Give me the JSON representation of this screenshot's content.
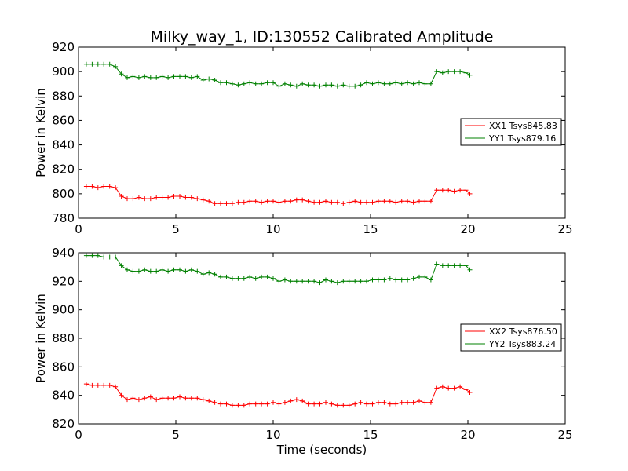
{
  "chart_data": {
    "type": "line",
    "title": "Milky_way_1, ID:130552 Calibrated Amplitude",
    "xlabel": "Time (seconds)",
    "colors": {
      "XX": "#ff0000",
      "YY": "#008000"
    },
    "x": [
      0.4,
      0.7,
      1.0,
      1.3,
      1.6,
      1.9,
      2.2,
      2.5,
      2.8,
      3.1,
      3.4,
      3.7,
      4.0,
      4.3,
      4.6,
      4.9,
      5.2,
      5.5,
      5.8,
      6.1,
      6.4,
      6.7,
      7.0,
      7.3,
      7.6,
      7.9,
      8.2,
      8.5,
      8.8,
      9.1,
      9.4,
      9.7,
      10.0,
      10.3,
      10.6,
      10.9,
      11.2,
      11.5,
      11.8,
      12.1,
      12.4,
      12.7,
      13.0,
      13.3,
      13.6,
      13.9,
      14.2,
      14.5,
      14.8,
      15.1,
      15.4,
      15.7,
      16.0,
      16.3,
      16.6,
      16.9,
      17.2,
      17.5,
      17.8,
      18.1,
      18.4,
      18.7,
      19.0,
      19.3,
      19.6,
      19.9,
      20.1
    ],
    "subplots": [
      {
        "ylabel": "Power in Kelvin",
        "xlim": [
          0,
          25
        ],
        "ylim": [
          780,
          920
        ],
        "xticks": [
          0,
          5,
          10,
          15,
          20,
          25
        ],
        "yticks": [
          780,
          800,
          820,
          840,
          860,
          880,
          900,
          920
        ],
        "legend_position": "center-right",
        "series": [
          {
            "name": "XX1 Tsys845.83",
            "color": "#ff0000",
            "values": [
              806,
              806,
              805,
              806,
              806,
              805,
              798,
              796,
              796,
              797,
              796,
              796,
              797,
              797,
              797,
              798,
              798,
              797,
              797,
              796,
              795,
              794,
              792,
              792,
              792,
              792,
              793,
              793,
              794,
              794,
              793,
              794,
              794,
              793,
              794,
              794,
              795,
              795,
              794,
              793,
              793,
              794,
              793,
              793,
              792,
              793,
              794,
              793,
              793,
              793,
              794,
              794,
              794,
              793,
              794,
              794,
              793,
              794,
              794,
              794,
              803,
              803,
              803,
              802,
              803,
              803,
              800
            ]
          },
          {
            "name": "YY1 Tsys879.16",
            "color": "#008000",
            "values": [
              906,
              906,
              906,
              906,
              906,
              904,
              898,
              895,
              896,
              895,
              896,
              895,
              895,
              896,
              895,
              896,
              896,
              896,
              895,
              896,
              893,
              894,
              893,
              891,
              891,
              890,
              889,
              890,
              891,
              890,
              890,
              891,
              891,
              888,
              890,
              889,
              888,
              890,
              889,
              889,
              888,
              889,
              889,
              888,
              889,
              888,
              888,
              889,
              891,
              890,
              891,
              890,
              890,
              891,
              890,
              891,
              890,
              891,
              890,
              890,
              900,
              899,
              900,
              900,
              900,
              899,
              897
            ]
          }
        ]
      },
      {
        "ylabel": "Power in Kelvin",
        "xlim": [
          0,
          25
        ],
        "ylim": [
          820,
          940
        ],
        "xticks": [
          0,
          5,
          10,
          15,
          20,
          25
        ],
        "yticks": [
          820,
          840,
          860,
          880,
          900,
          920,
          940
        ],
        "legend_position": "center-right",
        "series": [
          {
            "name": "XX2 Tsys876.50",
            "color": "#ff0000",
            "values": [
              848,
              847,
              847,
              847,
              847,
              846,
              840,
              837,
              838,
              837,
              838,
              839,
              837,
              838,
              838,
              838,
              839,
              838,
              838,
              838,
              837,
              836,
              835,
              834,
              834,
              833,
              833,
              833,
              834,
              834,
              834,
              834,
              835,
              834,
              835,
              836,
              837,
              836,
              834,
              834,
              834,
              835,
              834,
              833,
              833,
              833,
              834,
              835,
              834,
              834,
              835,
              835,
              834,
              834,
              835,
              835,
              835,
              836,
              835,
              835,
              845,
              846,
              845,
              845,
              846,
              844,
              842
            ]
          },
          {
            "name": "YY2 Tsys883.24",
            "color": "#008000",
            "values": [
              938,
              938,
              938,
              937,
              937,
              937,
              931,
              928,
              927,
              927,
              928,
              927,
              927,
              928,
              927,
              928,
              928,
              927,
              928,
              927,
              925,
              926,
              925,
              923,
              923,
              922,
              922,
              922,
              923,
              922,
              923,
              923,
              922,
              920,
              921,
              920,
              920,
              920,
              920,
              920,
              919,
              921,
              920,
              919,
              920,
              920,
              920,
              920,
              920,
              921,
              921,
              921,
              922,
              921,
              921,
              921,
              922,
              923,
              923,
              921,
              932,
              931,
              931,
              931,
              931,
              931,
              928
            ]
          }
        ]
      }
    ]
  }
}
